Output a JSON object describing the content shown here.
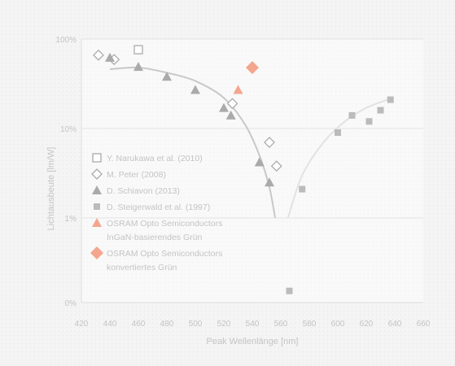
{
  "chart_data": {
    "type": "scatter",
    "xlabel": "Peak Wellenlänge [nm]",
    "ylabel": "Lichtausbeute [lm/W]",
    "xlim": [
      420,
      660
    ],
    "xticks": [
      420,
      440,
      460,
      480,
      500,
      520,
      540,
      560,
      580,
      600,
      620,
      640,
      660
    ],
    "y_scale": "log",
    "ylim": [
      0.5,
      100
    ],
    "yticks": [
      {
        "value": 100,
        "label": "100%"
      },
      {
        "value": 10,
        "label": "10%"
      },
      {
        "value": 1,
        "label": "1%"
      },
      {
        "value": 0.5,
        "label": "0%"
      }
    ],
    "grid": true,
    "legend_position": "left",
    "series": [
      {
        "name": "Y. Narukawa et al. (2010)",
        "marker": "square-open",
        "color": "#aaaaaa",
        "points": [
          [
            460,
            76
          ]
        ]
      },
      {
        "name": "M. Peter (2008)",
        "marker": "diamond-open",
        "color": "#aaaaaa",
        "points": [
          [
            432,
            66
          ],
          [
            443,
            59
          ],
          [
            526,
            19
          ],
          [
            552,
            7
          ],
          [
            557,
            3.8
          ]
        ]
      },
      {
        "name": "D. Schiavon (2013)",
        "marker": "triangle",
        "color": "#aaaaaa",
        "points": [
          [
            440,
            62
          ],
          [
            460,
            49
          ],
          [
            480,
            38
          ],
          [
            500,
            27
          ],
          [
            520,
            17
          ],
          [
            525,
            14
          ],
          [
            545,
            4.2
          ],
          [
            552,
            2.5
          ]
        ]
      },
      {
        "name": "D. Steigerwald et al. (1997)",
        "marker": "square",
        "color": "#bbbbbb",
        "points": [
          [
            566,
            0.55
          ],
          [
            575,
            2.1
          ],
          [
            600,
            9
          ],
          [
            610,
            14
          ],
          [
            622,
            12
          ],
          [
            630,
            16
          ],
          [
            637,
            21
          ]
        ]
      },
      {
        "name": "OSRAM Opto Semiconductors InGaN-basierendes Grün",
        "legend_lines": [
          "OSRAM Opto Semiconductors",
          "InGaN-basierendes Grün"
        ],
        "marker": "triangle",
        "color": "#f3a68d",
        "points": [
          [
            530,
            27
          ]
        ]
      },
      {
        "name": "OSRAM Opto Semiconductors konvertiertes Grün",
        "legend_lines": [
          "OSRAM Opto Semiconductors",
          "konvertiertes Grün"
        ],
        "marker": "diamond",
        "color": "#f3a68d",
        "points": [
          [
            540,
            48
          ]
        ]
      }
    ],
    "curves": [
      {
        "color": "#c8c8c8",
        "points": [
          [
            440,
            46
          ],
          [
            460,
            48
          ],
          [
            480,
            42
          ],
          [
            500,
            34
          ],
          [
            520,
            22
          ],
          [
            535,
            11
          ],
          [
            545,
            5
          ],
          [
            552,
            2.2
          ],
          [
            556,
            1
          ]
        ]
      },
      {
        "color": "#e2e2e2",
        "points": [
          [
            565,
            1
          ],
          [
            575,
            3
          ],
          [
            590,
            7
          ],
          [
            605,
            12
          ],
          [
            620,
            17
          ],
          [
            635,
            21
          ]
        ]
      }
    ]
  }
}
